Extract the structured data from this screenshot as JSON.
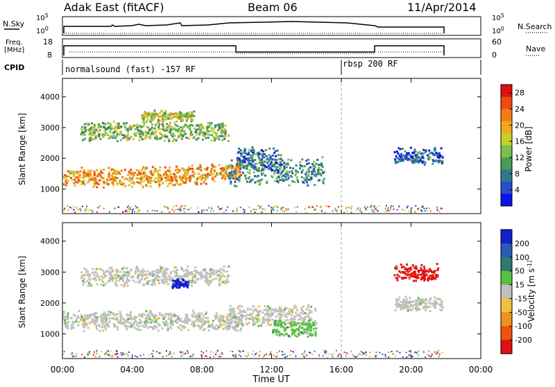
{
  "header": {
    "radar": "Adak East (fitACF)",
    "beam": "Beam 06",
    "date": "11/Apr/2014"
  },
  "top_panels": {
    "nsky_label": "N.Sky",
    "nsky_ticks": [
      "10^5",
      "10^0"
    ],
    "nsky_right_ticks": [
      "10^5",
      "10^0"
    ],
    "nsearch_label": "N.Search",
    "freq_label_1": "Freq.",
    "freq_label_2": "[MHz]",
    "freq_ticks": [
      "18",
      "8"
    ],
    "nave_label": "Nave",
    "nave_ticks": [
      "60",
      "0"
    ],
    "cpid_label": "CPID",
    "cpid_segments": [
      {
        "start_hour": 0,
        "end_hour": 16,
        "label": "normalsound (fast) -157 RF"
      },
      {
        "start_hour": 16,
        "end_hour": 22,
        "label": "rbsp 200 RF"
      }
    ]
  },
  "chart_data": [
    {
      "type": "heatmap",
      "name": "power",
      "xlabel": "Time UT",
      "ylabel": "Slant Range [km]",
      "xlim": [
        0,
        24
      ],
      "ylim": [
        200,
        4600
      ],
      "x_ticks": [
        "00:00",
        "04:00",
        "08:00",
        "12:00",
        "16:00",
        "20:00",
        "00:00"
      ],
      "y_ticks": [
        1000,
        2000,
        3000,
        4000
      ],
      "colorbar": {
        "label": "Power [dB]",
        "ticks": [
          4,
          8,
          12,
          16,
          20,
          24,
          28
        ],
        "colors": [
          "#0a14e6",
          "#2a4ccf",
          "#2f7a8a",
          "#4a9a5a",
          "#7cc04a",
          "#c8cf2a",
          "#f0a81e",
          "#f57a14",
          "#ee4a12",
          "#e01010"
        ]
      },
      "echo_regions": [
        {
          "t_start": 0.0,
          "t_end": 10.3,
          "r_center": 1450,
          "r_width": 350,
          "power_db": 20
        },
        {
          "t_start": 1.0,
          "t_end": 9.5,
          "r_center": 2900,
          "r_width": 350,
          "power_db": 12
        },
        {
          "t_start": 4.5,
          "t_end": 7.5,
          "r_center": 3400,
          "r_width": 200,
          "power_db": 14
        },
        {
          "t_start": 9.5,
          "t_end": 15.0,
          "r_center": 1600,
          "r_width": 500,
          "power_db": 8
        },
        {
          "t_start": 10.0,
          "t_end": 12.5,
          "r_center": 2000,
          "r_width": 400,
          "power_db": 6
        },
        {
          "t_start": 19.0,
          "t_end": 21.8,
          "r_center": 2100,
          "r_width": 300,
          "power_db": 5
        }
      ]
    },
    {
      "type": "heatmap",
      "name": "velocity",
      "xlabel": "Time UT",
      "ylabel": "Slant Range [km]",
      "xlim": [
        0,
        24
      ],
      "ylim": [
        200,
        4600
      ],
      "x_ticks": [
        "00:00",
        "04:00",
        "08:00",
        "12:00",
        "16:00",
        "20:00",
        "00:00"
      ],
      "y_ticks": [
        1000,
        2000,
        3000,
        4000
      ],
      "colorbar": {
        "label": "Velocity [m s^-1]",
        "ticks": [
          200,
          100,
          50,
          15,
          -15,
          -50,
          -100,
          -200
        ],
        "colors": [
          "#1020d0",
          "#2a5ab8",
          "#2f7a70",
          "#58c040",
          "#c0c0c0",
          "#f0c040",
          "#f09020",
          "#f05010",
          "#e01010"
        ]
      },
      "echo_regions": [
        {
          "t_start": 0.0,
          "t_end": 10.3,
          "r_center": 1450,
          "r_width": 350,
          "velocity": 0
        },
        {
          "t_start": 1.0,
          "t_end": 9.5,
          "r_center": 2900,
          "r_width": 350,
          "velocity": 0
        },
        {
          "t_start": 6.2,
          "t_end": 7.2,
          "r_center": 2650,
          "r_width": 150,
          "velocity": 200
        },
        {
          "t_start": 9.5,
          "t_end": 14.5,
          "r_center": 1600,
          "r_width": 400,
          "velocity": 0
        },
        {
          "t_start": 12.0,
          "t_end": 14.5,
          "r_center": 1200,
          "r_width": 300,
          "velocity": 60
        },
        {
          "t_start": 19.0,
          "t_end": 21.8,
          "r_center": 2000,
          "r_width": 250,
          "velocity": 0
        },
        {
          "t_start": 19.0,
          "t_end": 21.5,
          "r_center": 3000,
          "r_width": 300,
          "velocity": -200
        }
      ]
    }
  ]
}
